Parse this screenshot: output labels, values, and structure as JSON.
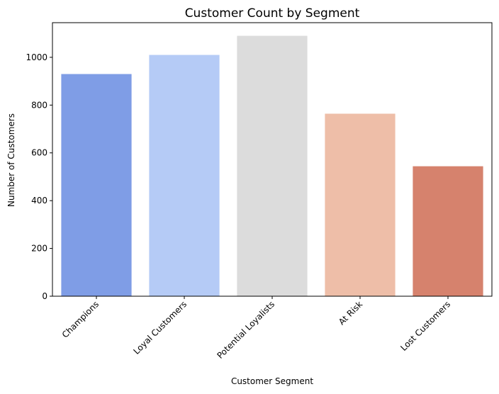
{
  "chart_data": {
    "type": "bar",
    "title": "Customer Count by Segment",
    "xlabel": "Customer Segment",
    "ylabel": "Number of Customers",
    "categories": [
      "Champions",
      "Loyal Customers",
      "Potential Loyalists",
      "At Risk",
      "Lost Customers"
    ],
    "values": [
      930,
      1010,
      1090,
      764,
      544
    ],
    "colors": [
      "#7f9de6",
      "#b5cbf6",
      "#dcdcdc",
      "#eebea8",
      "#d6826d"
    ],
    "ylim": [
      0,
      1145
    ],
    "yticks": [
      0,
      200,
      400,
      600,
      800,
      1000
    ],
    "ytick_labels": [
      "0",
      "200",
      "400",
      "600",
      "800",
      "1000"
    ],
    "xtick_rotation": 45,
    "grid": false,
    "legend": "none"
  }
}
